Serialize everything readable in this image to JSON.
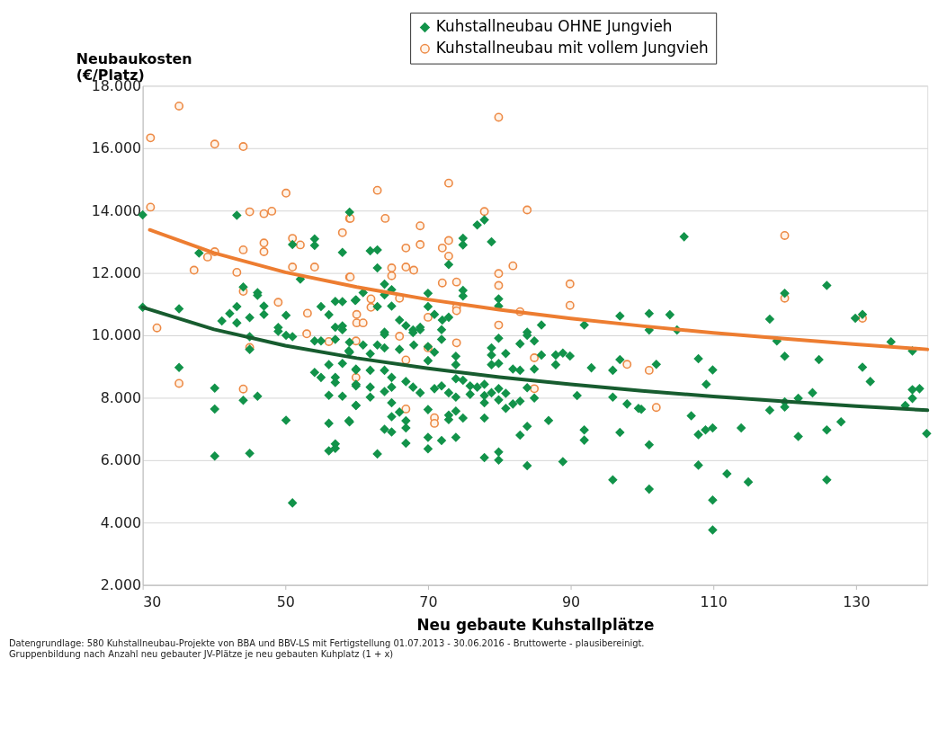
{
  "chart_data": {
    "type": "scatter",
    "xlabel": "Neu gebaute Kuhstallplätze",
    "ylabel": "Neubaukosten (€/Platz)",
    "xlim": [
      30,
      140
    ],
    "xticks": [
      30,
      50,
      70,
      90,
      110,
      130
    ],
    "ylim": [
      2000,
      18000
    ],
    "yticks": [
      {
        "value": 2000,
        "label": "2.000"
      },
      {
        "value": 4000,
        "label": "4.000"
      },
      {
        "value": 6000,
        "label": "6.000"
      },
      {
        "value": 8000,
        "label": "8.000"
      },
      {
        "value": 10000,
        "label": "10.000"
      },
      {
        "value": 12000,
        "label": "12.000"
      },
      {
        "value": 14000,
        "label": "14.000"
      },
      {
        "value": 16000,
        "label": "16.000"
      },
      {
        "value": 18000,
        "label": "18.000"
      }
    ],
    "grid": "y",
    "legend": "top",
    "annotations": [
      "Datengrundlage: 580 Kuhstallneubau-Projekte von BBA und BBV-LS  mit Fertigstellung 01.07.2013 - 30.06.2016 - Bruttowerte - plausibereinigt.",
      "Gruppenbildung nach Anzahl neu gebauter JV-Plätze je neu gebauten Kuhplatz (1 + x)"
    ],
    "series": [
      {
        "name": "Kuhstallneubau OHNE Jungvieh",
        "marker": "diamond",
        "color": "#12934a",
        "x": [
          30,
          43.2,
          59.0,
          37.9,
          51.0,
          54.1,
          54.1,
          58.0,
          52.1,
          44.1,
          46.1,
          46.1,
          47.0,
          47.0,
          30,
          35.1,
          41.1,
          42.2,
          43.2,
          43.2,
          45.0,
          50.1,
          55.0,
          56.1,
          57.0,
          58.0,
          59.8,
          57.0,
          58.0,
          49.0,
          49.0,
          50.1,
          51.0,
          45.0,
          45.0,
          35.1,
          40.1,
          40.1,
          44.1,
          46.1,
          40.1,
          45.0,
          50.1,
          51.0,
          54.1,
          55.0,
          56.1,
          57.0,
          57.0,
          58.0,
          56.1,
          58.0,
          59.9,
          59.9,
          56.1,
          59.0,
          56.1,
          57.0,
          57.0,
          54.1,
          55.0,
          57.0,
          58.0,
          59.0,
          59.0,
          59.9,
          76.9,
          77.9,
          74.9,
          74.9,
          78.9,
          61.9,
          62.9,
          62.9,
          72.9,
          63.9,
          64.9,
          63.9,
          60.9,
          59.9,
          62.9,
          64.9,
          70.0,
          70.0,
          74.9,
          74.9,
          79.9,
          79.9,
          70.9,
          72.0,
          72.9,
          66.0,
          66.9,
          68.9,
          67.9,
          85.9,
          91.9,
          96.9,
          63.9,
          83.9,
          63.9,
          67.9,
          68.9,
          71.9,
          71.9,
          62.9,
          63.9,
          66.0,
          68.0,
          60.9,
          58.9,
          61.9,
          70.0,
          70.9,
          70.0,
          73.9,
          73.9,
          78.9,
          78.9,
          79.9,
          80.9,
          82.9,
          83.9,
          84.9,
          85.9,
          87.9,
          88.9,
          89.9,
          87.9,
          92.9,
          95.9,
          96.9,
          84.9,
          81.9,
          82.9,
          78.9,
          79.9,
          59.9,
          61.9,
          63.9,
          64.9,
          59.9,
          61.9,
          61.9,
          63.9,
          64.9,
          66.9,
          67.9,
          68.9,
          70.9,
          71.9,
          72.9,
          73.9,
          73.9,
          74.9,
          75.9,
          75.9,
          76.9,
          77.9,
          77.9,
          77.9,
          78.9,
          79.9,
          80.9,
          79.9,
          80.9,
          81.9,
          82.9,
          83.9,
          84.9,
          90.9,
          95.9,
          97.9,
          59.9,
          58.9,
          64.9,
          64.9,
          66.0,
          66.9,
          66.9,
          63.9,
          64.9,
          66.9,
          62.9,
          70.0,
          70.0,
          70.0,
          71.9,
          72.9,
          72.9,
          73.9,
          73.9,
          74.9,
          77.9,
          77.9,
          79.9,
          79.9,
          83.9,
          82.9,
          83.9,
          86.9,
          88.9,
          91.9,
          91.9,
          96.9,
          95.9,
          99.5,
          105.9,
          120.0,
          125.9,
          101.0,
          103.9,
          117.9,
          129.9,
          130.9,
          101.0,
          104.9,
          107.9,
          102.0,
          109.9,
          109.0,
          120.0,
          118.9,
          124.8,
          130.9,
          132.0,
          134.9,
          137.9,
          137.9,
          138.9,
          137.9,
          136.9,
          123.9,
          121.9,
          120.0,
          120.0,
          117.9,
          99.9,
          106.9,
          107.9,
          108.9,
          109.9,
          113.9,
          121.9,
          125.9,
          127.9,
          139.9,
          101.0,
          107.9,
          111.9,
          114.9,
          125.9,
          101.0,
          109.9,
          109.9
        ],
        "values": [
          13860,
          13850,
          13950,
          12640,
          12910,
          13090,
          12880,
          12660,
          11800,
          11550,
          11370,
          11280,
          10940,
          10670,
          10900,
          10850,
          10460,
          10700,
          10920,
          10400,
          10570,
          10640,
          10920,
          10660,
          11090,
          11080,
          11120,
          10260,
          10300,
          10250,
          10130,
          10000,
          9960,
          9960,
          9550,
          8970,
          8310,
          7640,
          7920,
          8050,
          6130,
          6220,
          7280,
          4630,
          8810,
          8650,
          9060,
          8650,
          8490,
          9100,
          8080,
          8050,
          8380,
          7750,
          7180,
          7230,
          6300,
          6380,
          6520,
          9820,
          9820,
          9870,
          10180,
          9780,
          9460,
          8890,
          13540,
          13700,
          13110,
          12900,
          13000,
          12710,
          12740,
          12160,
          12270,
          11640,
          11460,
          11300,
          11370,
          11140,
          10920,
          10940,
          11350,
          10920,
          11440,
          11260,
          11170,
          10940,
          10670,
          10490,
          10580,
          10490,
          10310,
          10260,
          10170,
          10330,
          10330,
          10620,
          10100,
          10100,
          10030,
          10090,
          10180,
          9870,
          10180,
          9690,
          9600,
          9550,
          9690,
          9690,
          9500,
          9410,
          9640,
          9460,
          9190,
          9330,
          9060,
          9600,
          9370,
          9910,
          9420,
          9730,
          10000,
          9820,
          9370,
          9370,
          9430,
          9340,
          9060,
          8960,
          8880,
          9220,
          8920,
          8920,
          8880,
          9060,
          9100,
          8920,
          8880,
          8880,
          8650,
          8430,
          8340,
          8020,
          8200,
          8340,
          8520,
          8340,
          8160,
          8290,
          8380,
          8160,
          8020,
          8610,
          8560,
          8380,
          8110,
          8340,
          8430,
          8070,
          7840,
          8160,
          8290,
          8140,
          7930,
          7660,
          7800,
          7890,
          8320,
          7990,
          8070,
          8020,
          7800,
          7750,
          7260,
          7840,
          7390,
          7540,
          7260,
          7030,
          6990,
          6900,
          6540,
          6200,
          7620,
          6730,
          6360,
          6630,
          7440,
          7300,
          6730,
          7570,
          7350,
          7350,
          6080,
          6260,
          6000,
          7080,
          6800,
          5820,
          7270,
          5950,
          6970,
          6640,
          6890,
          5370,
          7660,
          13160,
          11350,
          11600,
          10700,
          10660,
          10520,
          10550,
          10670,
          10170,
          10170,
          9250,
          9070,
          8890,
          8430,
          9330,
          9820,
          9220,
          8980,
          8520,
          9790,
          9500,
          8260,
          8290,
          7980,
          7750,
          8160,
          7980,
          7870,
          7700,
          7600,
          7630,
          7420,
          6820,
          6970,
          7030,
          7030,
          6760,
          6970,
          7230,
          6850,
          6490,
          5840,
          5560,
          5300,
          5370,
          5070,
          4720,
          3760
        ]
      },
      {
        "name": "Kuhstallneubau mit vollem Jungvieh",
        "marker": "circle",
        "color": "#ed8a45",
        "x": [
          35.1,
          31.1,
          40.1,
          44.1,
          31.1,
          45.0,
          47.0,
          48.1,
          50.1,
          40.1,
          39.1,
          37.2,
          44.1,
          43.2,
          47.0,
          47.0,
          51.0,
          52.1,
          51.0,
          54.1,
          58.0,
          59.0,
          59.0,
          44.1,
          49.0,
          53.1,
          32.0,
          45.0,
          35.1,
          44.1,
          53.0,
          56.1,
          59.9,
          59.9,
          79.9,
          72.9,
          62.9,
          77.9,
          83.9,
          59.1,
          64.0,
          68.9,
          68.9,
          66.9,
          72.0,
          72.9,
          72.9,
          64.9,
          64.9,
          66.9,
          68.0,
          81.9,
          79.9,
          79.9,
          72.0,
          74.0,
          59.1,
          89.9,
          89.9,
          62.0,
          62.0,
          66.0,
          74.0,
          74.0,
          79.9,
          82.9,
          60.0,
          60.0,
          60.9,
          70.0,
          66.0,
          70.0,
          74.0,
          66.9,
          84.9,
          97.9,
          84.9,
          66.9,
          70.9,
          70.9,
          120.0,
          120.0,
          130.9,
          101.0,
          102.0
        ],
        "values": [
          17350,
          16330,
          16130,
          16050,
          14110,
          13960,
          13900,
          13980,
          14560,
          12680,
          12510,
          12090,
          12740,
          12020,
          12960,
          12680,
          13110,
          12900,
          12190,
          12190,
          13290,
          13750,
          11870,
          11410,
          11060,
          10710,
          10240,
          9610,
          8460,
          8280,
          10050,
          9800,
          9820,
          8650,
          16990,
          14880,
          14650,
          13970,
          14020,
          13750,
          13750,
          13510,
          12910,
          12800,
          12800,
          13040,
          12540,
          12160,
          11910,
          12190,
          12090,
          12230,
          11980,
          11600,
          11680,
          11710,
          11870,
          11650,
          10960,
          11170,
          10900,
          11190,
          10900,
          10790,
          10330,
          10760,
          10670,
          10400,
          10400,
          10580,
          9970,
          9600,
          9760,
          9210,
          9280,
          9070,
          8290,
          7640,
          7360,
          7180,
          13200,
          11190,
          10550,
          8880,
          7690
        ]
      },
      {
        "type": "line",
        "color": "#ed7d31",
        "x": [
          31,
          40,
          50,
          60,
          70,
          80,
          90,
          100,
          110,
          120,
          130,
          140
        ],
        "values": [
          13380,
          12640,
          12020,
          11550,
          11150,
          10820,
          10540,
          10300,
          10080,
          9890,
          9710,
          9550
        ]
      },
      {
        "type": "line",
        "color": "#175c2f",
        "x": [
          30,
          40,
          50,
          60,
          70,
          80,
          90,
          100,
          110,
          120,
          130,
          140
        ],
        "values": [
          10900,
          10190,
          9670,
          9270,
          8940,
          8660,
          8430,
          8220,
          8040,
          7880,
          7730,
          7600
        ]
      }
    ]
  }
}
